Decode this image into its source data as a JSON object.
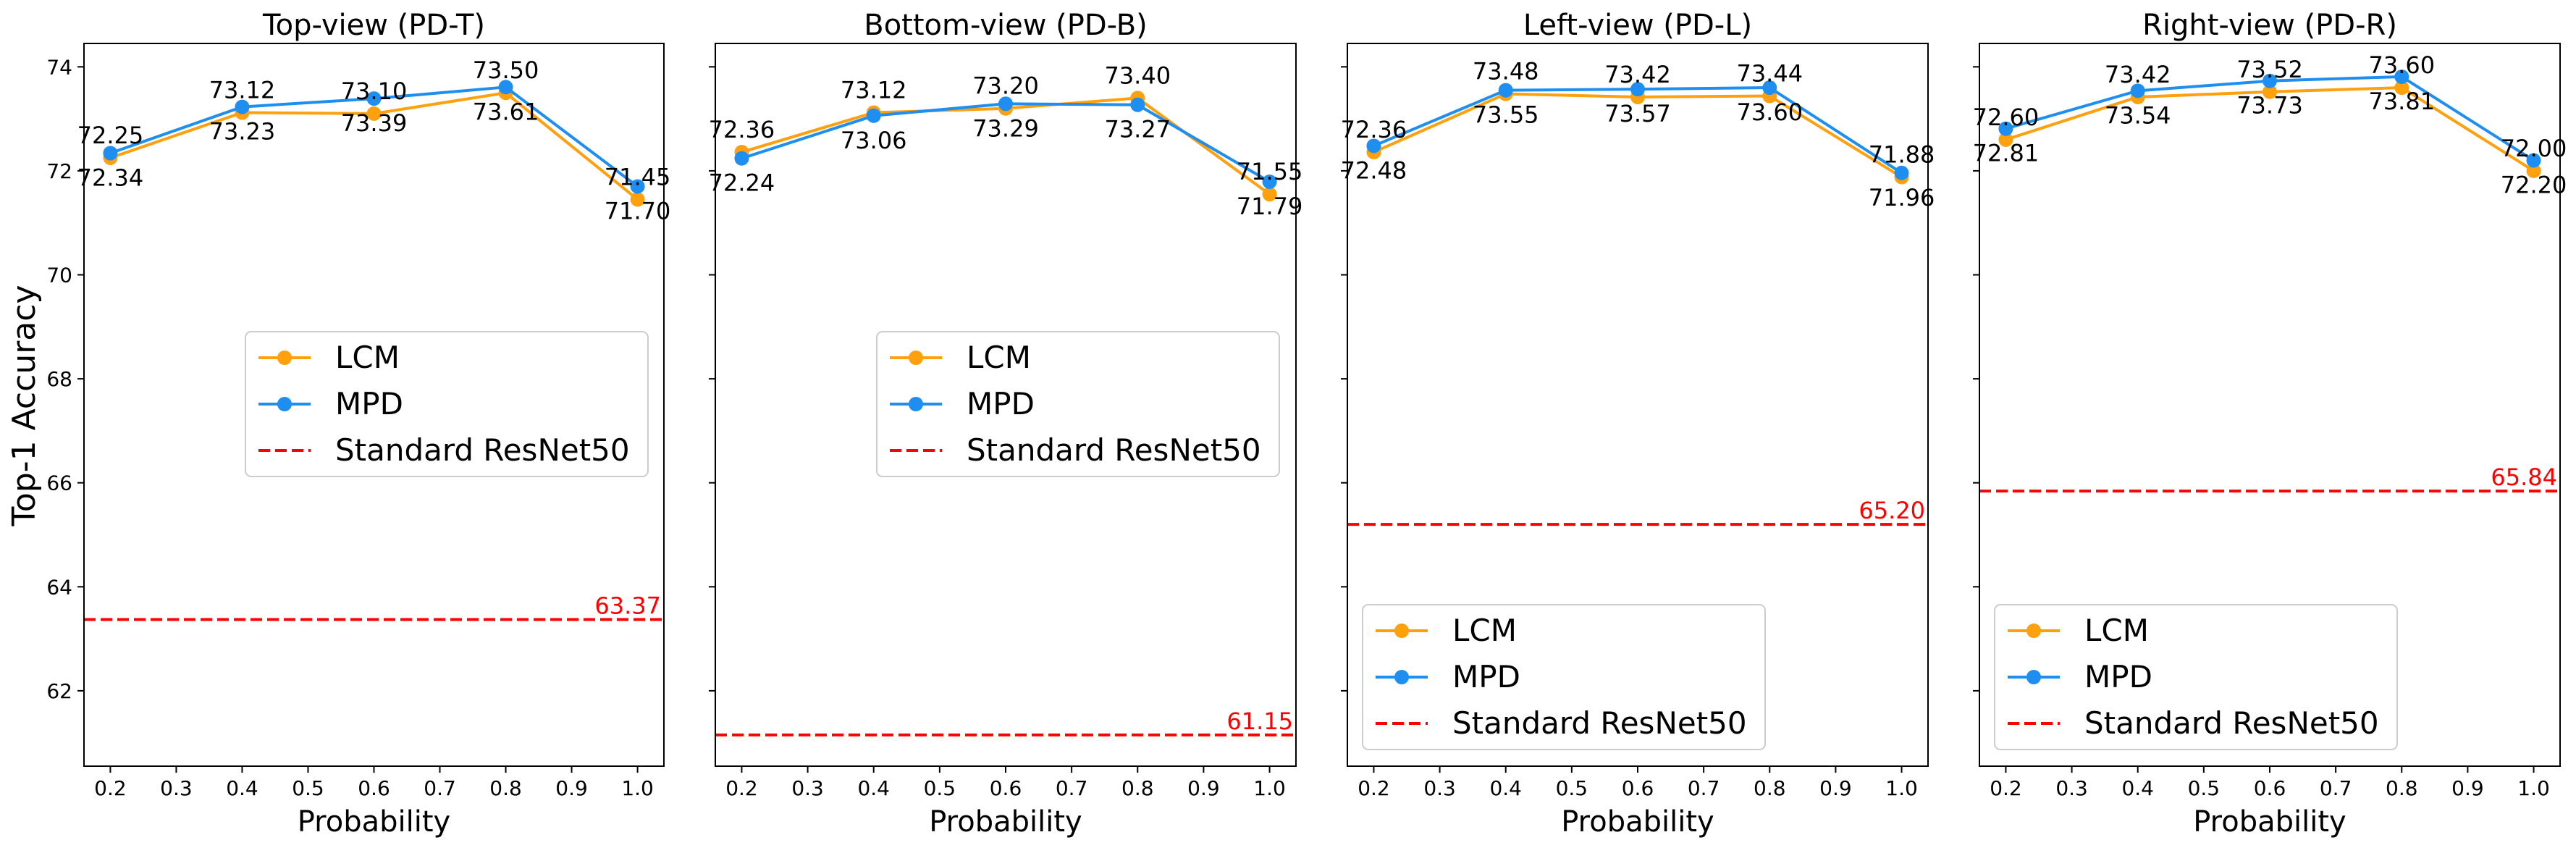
{
  "figure": {
    "ylabel": "Top-1 Accuracy",
    "xlabel": "Probability"
  },
  "colors": {
    "lcm": "#FFA00F",
    "mpd": "#1E8FF0",
    "baseline": "#FF0000",
    "axis": "#000000",
    "text": "#000000"
  },
  "chart_data": [
    {
      "type": "line",
      "title": "Top-view (PD-T)",
      "xlabel": "Probability",
      "ylabel": "Top-1 Accuracy",
      "x": [
        0.2,
        0.4,
        0.6,
        0.8,
        1.0
      ],
      "xticks": [
        "0.2",
        "0.3",
        "0.4",
        "0.5",
        "0.6",
        "0.7",
        "0.8",
        "0.9",
        "1.0"
      ],
      "yticks": [
        "62",
        "64",
        "66",
        "68",
        "70",
        "72",
        "74"
      ],
      "xlim": [
        0.16,
        1.04
      ],
      "ylim": [
        60.55,
        74.45
      ],
      "show_ytick_labels": true,
      "legend_position": "center-left",
      "series": [
        {
          "name": "LCM",
          "values": [
            72.25,
            73.12,
            73.1,
            73.5,
            71.45
          ],
          "labels": [
            "72.25",
            "73.12",
            "73.10",
            "73.50",
            "71.45"
          ],
          "label_pos": [
            "above",
            "above",
            "above",
            "above",
            "above"
          ]
        },
        {
          "name": "MPD",
          "values": [
            72.34,
            73.23,
            73.39,
            73.61,
            71.7
          ],
          "labels": [
            "72.34",
            "73.23",
            "73.39",
            "73.61",
            "71.70"
          ],
          "label_pos": [
            "below",
            "below",
            "below",
            "below",
            "below"
          ]
        }
      ],
      "baseline": {
        "name": "Standard ResNet50",
        "value": 63.37,
        "label": "63.37"
      }
    },
    {
      "type": "line",
      "title": "Bottom-view (PD-B)",
      "xlabel": "Probability",
      "ylabel": "",
      "x": [
        0.2,
        0.4,
        0.6,
        0.8,
        1.0
      ],
      "xticks": [
        "0.2",
        "0.3",
        "0.4",
        "0.5",
        "0.6",
        "0.7",
        "0.8",
        "0.9",
        "1.0"
      ],
      "yticks": [
        "62",
        "64",
        "66",
        "68",
        "70",
        "72",
        "74"
      ],
      "xlim": [
        0.16,
        1.04
      ],
      "ylim": [
        60.55,
        74.45
      ],
      "show_ytick_labels": false,
      "legend_position": "center-left",
      "series": [
        {
          "name": "LCM",
          "values": [
            72.36,
            73.12,
            73.2,
            73.4,
            71.55
          ],
          "labels": [
            "72.36",
            "73.12",
            "73.20",
            "73.40",
            "71.55"
          ],
          "label_pos": [
            "above",
            "above",
            "above",
            "above",
            "above"
          ]
        },
        {
          "name": "MPD",
          "values": [
            72.24,
            73.06,
            73.29,
            73.27,
            71.79
          ],
          "labels": [
            "72.24",
            "73.06",
            "73.29",
            "73.27",
            "71.79"
          ],
          "label_pos": [
            "below",
            "below",
            "below",
            "below",
            "below"
          ]
        }
      ],
      "baseline": {
        "name": "Standard ResNet50",
        "value": 61.15,
        "label": "61.15"
      }
    },
    {
      "type": "line",
      "title": "Left-view (PD-L)",
      "xlabel": "Probability",
      "ylabel": "",
      "x": [
        0.2,
        0.4,
        0.6,
        0.8,
        1.0
      ],
      "xticks": [
        "0.2",
        "0.3",
        "0.4",
        "0.5",
        "0.6",
        "0.7",
        "0.8",
        "0.9",
        "1.0"
      ],
      "yticks": [
        "62",
        "64",
        "66",
        "68",
        "70",
        "72",
        "74"
      ],
      "xlim": [
        0.16,
        1.04
      ],
      "ylim": [
        60.55,
        74.45
      ],
      "show_ytick_labels": false,
      "legend_position": "lower-left",
      "series": [
        {
          "name": "LCM",
          "values": [
            72.36,
            73.48,
            73.42,
            73.44,
            71.88
          ],
          "labels": [
            "72.36",
            "73.48",
            "73.42",
            "73.44",
            "71.88"
          ],
          "label_pos": [
            "above",
            "above",
            "above",
            "above",
            "above"
          ]
        },
        {
          "name": "MPD",
          "values": [
            72.48,
            73.55,
            73.57,
            73.6,
            71.96
          ],
          "labels": [
            "72.48",
            "73.55",
            "73.57",
            "73.60",
            "71.96"
          ],
          "label_pos": [
            "below",
            "below",
            "below",
            "below",
            "below"
          ]
        }
      ],
      "baseline": {
        "name": "Standard ResNet50",
        "value": 65.2,
        "label": "65.20"
      }
    },
    {
      "type": "line",
      "title": "Right-view (PD-R)",
      "xlabel": "Probability",
      "ylabel": "",
      "x": [
        0.2,
        0.4,
        0.6,
        0.8,
        1.0
      ],
      "xticks": [
        "0.2",
        "0.3",
        "0.4",
        "0.5",
        "0.6",
        "0.7",
        "0.8",
        "0.9",
        "1.0"
      ],
      "yticks": [
        "62",
        "64",
        "66",
        "68",
        "70",
        "72",
        "74"
      ],
      "xlim": [
        0.16,
        1.04
      ],
      "ylim": [
        60.55,
        74.45
      ],
      "show_ytick_labels": false,
      "legend_position": "lower-left",
      "series": [
        {
          "name": "LCM",
          "values": [
            72.6,
            73.42,
            73.52,
            73.6,
            72.0
          ],
          "labels": [
            "72.60",
            "73.42",
            "73.52",
            "73.60",
            "72.00"
          ],
          "label_pos": [
            "above",
            "above",
            "above",
            "above",
            "above"
          ]
        },
        {
          "name": "MPD",
          "values": [
            72.81,
            73.54,
            73.73,
            73.81,
            72.2
          ],
          "labels": [
            "72.81",
            "73.54",
            "73.73",
            "73.81",
            "72.20"
          ],
          "label_pos": [
            "below",
            "below",
            "below",
            "below",
            "below"
          ]
        }
      ],
      "baseline": {
        "name": "Standard ResNet50",
        "value": 65.84,
        "label": "65.84"
      }
    }
  ]
}
